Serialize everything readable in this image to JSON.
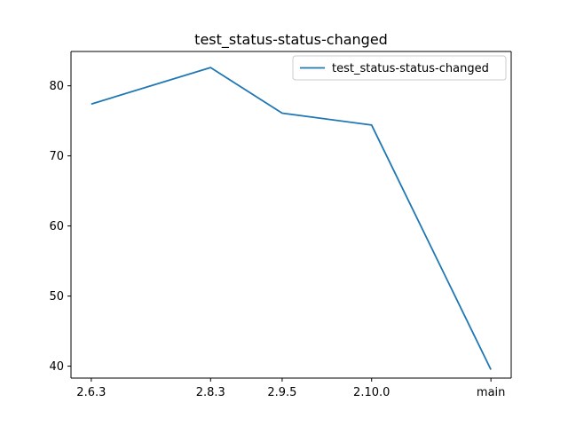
{
  "chart_data": {
    "type": "line",
    "title": "test_status-status-changed",
    "xlabel": "",
    "ylabel": "",
    "categories": [
      "2.6.3",
      "2.8.3",
      "2.9.5",
      "2.10.0",
      "main"
    ],
    "category_positions": [
      2.63,
      2.83,
      2.95,
      3.1,
      3.3
    ],
    "series": [
      {
        "name": "test_status-status-changed",
        "values": [
          77.4,
          82.6,
          76.1,
          74.4,
          39.5
        ],
        "color": "#1f77b4"
      }
    ],
    "yticks": [
      40,
      50,
      60,
      70,
      80
    ],
    "ylim": [
      38.3,
      84.9
    ],
    "xlim": [
      2.596,
      3.334
    ],
    "grid": false,
    "legend_position": "top-right"
  }
}
